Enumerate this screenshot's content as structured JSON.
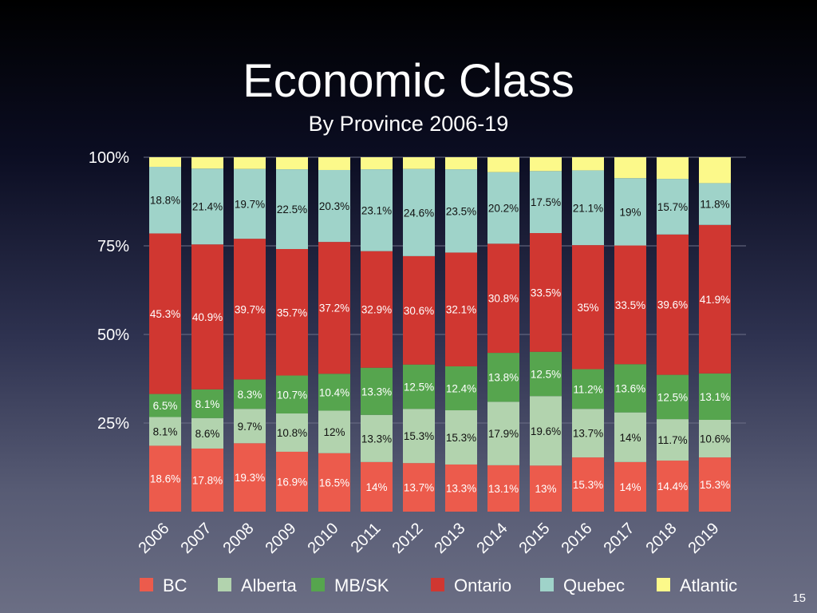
{
  "chart_data": {
    "type": "bar",
    "stacked": true,
    "title": "Economic Class",
    "subtitle": "By Province 2006-19",
    "categories": [
      "2006",
      "2007",
      "2008",
      "2009",
      "2010",
      "2011",
      "2012",
      "2013",
      "2014",
      "2015",
      "2016",
      "2017",
      "2018",
      "2019"
    ],
    "ylim": [
      0,
      100
    ],
    "yticks": [
      "100%",
      "75%",
      "50%",
      "25%"
    ],
    "ytick_values": [
      100,
      75,
      50,
      25
    ],
    "grid": true,
    "legend_position": "bottom",
    "series": [
      {
        "name": "BC",
        "color": "#ec5b4c",
        "label_color": "#ffffff",
        "show_labels": true,
        "values": [
          18.6,
          17.8,
          19.3,
          16.9,
          16.5,
          14,
          13.7,
          13.3,
          13.1,
          13,
          15.3,
          14,
          14.4,
          15.3
        ]
      },
      {
        "name": "Alberta",
        "color": "#b2d3ae",
        "label_color": "#111111",
        "show_labels": true,
        "values": [
          8.1,
          8.6,
          9.7,
          10.8,
          12,
          13.3,
          15.3,
          15.3,
          17.9,
          19.6,
          13.7,
          14,
          11.7,
          10.6
        ]
      },
      {
        "name": "MB/SK",
        "color": "#56a54e",
        "label_color": "#ffffff",
        "show_labels": true,
        "values": [
          6.5,
          8.1,
          8.3,
          10.7,
          10.4,
          13.3,
          12.5,
          12.4,
          13.8,
          12.5,
          11.2,
          13.6,
          12.5,
          13.1
        ]
      },
      {
        "name": "Ontario",
        "color": "#d03731",
        "label_color": "#ffffff",
        "show_labels": true,
        "values": [
          45.3,
          40.9,
          39.7,
          35.7,
          37.2,
          32.9,
          30.6,
          32.1,
          30.8,
          33.5,
          35,
          33.5,
          39.6,
          41.9
        ]
      },
      {
        "name": "Quebec",
        "color": "#9fd3c9",
        "label_color": "#111111",
        "show_labels": true,
        "values": [
          18.8,
          21.4,
          19.7,
          22.5,
          20.3,
          23.1,
          24.6,
          23.5,
          20.2,
          17.5,
          21.1,
          19,
          15.7,
          11.8
        ]
      },
      {
        "name": "Atlantic",
        "color": "#fcf98a",
        "label_color": "#111111",
        "show_labels": false,
        "values": [
          2.7,
          3.2,
          3.3,
          3.4,
          3.6,
          3.4,
          3.3,
          3.4,
          4.2,
          3.9,
          3.7,
          5.9,
          6.1,
          7.3
        ]
      }
    ]
  },
  "page_number": "15"
}
